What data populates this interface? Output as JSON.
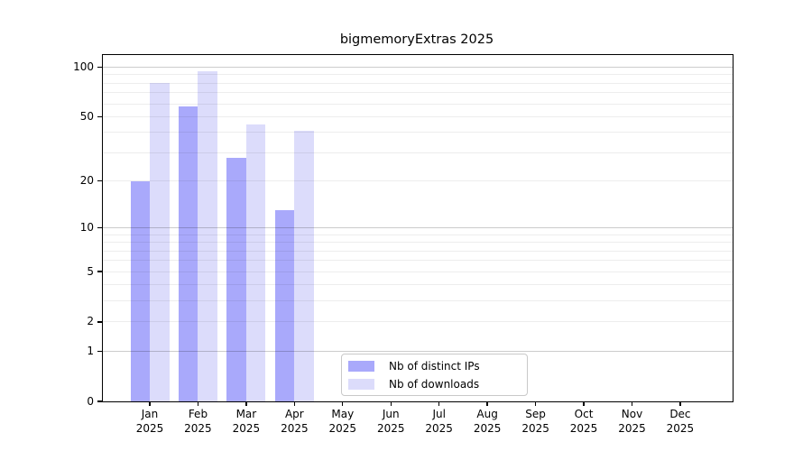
{
  "title": "bigmemoryExtras 2025",
  "legend": {
    "items": [
      {
        "label": "Nb of distinct IPs",
        "color": "#a9a9fb"
      },
      {
        "label": "Nb of downloads",
        "color": "#dcdcfb"
      }
    ]
  },
  "chart_data": {
    "type": "bar",
    "title": "bigmemoryExtras 2025",
    "categories": [
      "Jan 2025",
      "Feb 2025",
      "Mar 2025",
      "Apr 2025",
      "May 2025",
      "Jun 2025",
      "Jul 2025",
      "Aug 2025",
      "Sep 2025",
      "Oct 2025",
      "Nov 2025",
      "Dec 2025"
    ],
    "months": [
      "Jan",
      "Feb",
      "Mar",
      "Apr",
      "May",
      "Jun",
      "Jul",
      "Aug",
      "Sep",
      "Oct",
      "Nov",
      "Dec"
    ],
    "year_label": "2025",
    "series": [
      {
        "name": "Nb of distinct IPs",
        "color": "#a9a9fb",
        "values": [
          20,
          58,
          28,
          13,
          0,
          0,
          0,
          0,
          0,
          0,
          0,
          0
        ]
      },
      {
        "name": "Nb of downloads",
        "color": "#dcdcfb",
        "values": [
          80,
          95,
          45,
          41,
          0,
          0,
          0,
          0,
          0,
          0,
          0,
          0
        ]
      }
    ],
    "yscale": "log1p",
    "ylim": [
      0,
      118
    ],
    "yticks": [
      0,
      1,
      2,
      5,
      10,
      20,
      50,
      100
    ],
    "ytick_labels": [
      "0",
      "1",
      "2",
      "5",
      "10",
      "20",
      "50",
      "100"
    ],
    "gridlines": {
      "major": [
        1,
        10,
        100
      ],
      "minor": [
        2,
        3,
        4,
        5,
        6,
        7,
        8,
        9,
        20,
        30,
        40,
        50,
        60,
        70,
        80,
        90
      ]
    },
    "grid": "horizontal",
    "legend_position": "inside plot, lower center"
  }
}
